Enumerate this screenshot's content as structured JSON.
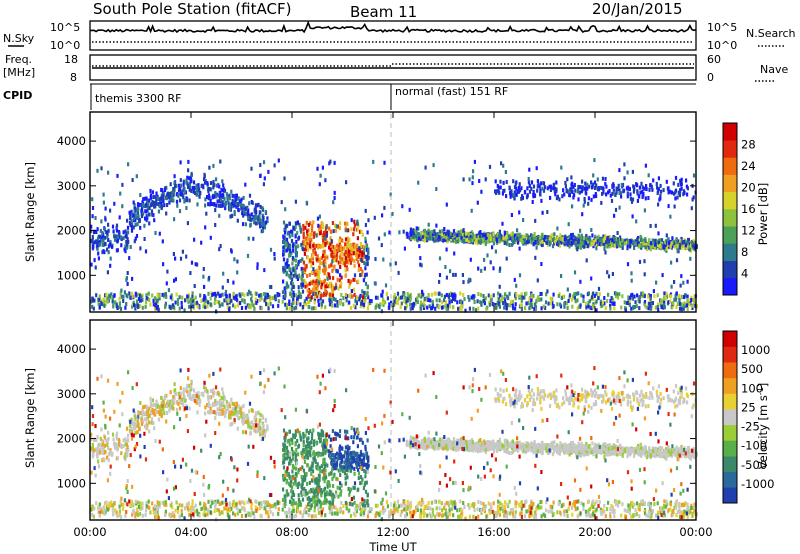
{
  "header": {
    "title": "South Pole Station (fitACF)",
    "beam": "Beam 11",
    "date": "20/Jan/2015"
  },
  "top_panels": {
    "nsky_label": "N.Sky",
    "nsky_ticks": [
      "10^5",
      "10^0"
    ],
    "nsearch_label": "N.Search",
    "nsearch_ticks": [
      "10^5",
      "10^0"
    ],
    "freq_label_1": "Freq.",
    "freq_label_2": "[MHz]",
    "freq_ticks": [
      "18",
      "8"
    ],
    "nave_label": "Nave",
    "nave_ticks": [
      "60",
      "0"
    ],
    "cpid_label": "CPID",
    "cpid_1": "themis 3300 RF",
    "cpid_2": "normal (fast) 151 RF"
  },
  "chart_data": [
    {
      "type": "heatmap",
      "name": "power",
      "ylabel": "Slant Range [km]",
      "yticks": [
        "1000",
        "2000",
        "3000",
        "4000"
      ],
      "ylim": [
        180,
        4650
      ],
      "colorbar_label": "Power [dB]",
      "colorbar_ticks": [
        "4",
        "8",
        "12",
        "16",
        "20",
        "24",
        "28"
      ],
      "colorbar_colors": [
        "#1a1aff",
        "#1f3fb0",
        "#2d7a8a",
        "#4da05a",
        "#8cc23c",
        "#d7d22a",
        "#f0a020",
        "#f06a10",
        "#e02a10",
        "#d00000"
      ],
      "features": [
        {
          "name": "ground scatter band (near range)",
          "t": [
            0,
            24
          ],
          "range_km": [
            250,
            700
          ]
        },
        {
          "name": "night echoes",
          "t": [
            0,
            7
          ],
          "range_km": [
            1500,
            3200
          ]
        },
        {
          "name": "strong echo region",
          "t": [
            8,
            11
          ],
          "range_km": [
            400,
            2200
          ]
        },
        {
          "name": "main scatter band",
          "t": [
            12.5,
            24
          ],
          "range_km": [
            1500,
            2200
          ]
        },
        {
          "name": "far-range scatter",
          "t": [
            16,
            24
          ],
          "range_km": [
            2700,
            3500
          ]
        }
      ]
    },
    {
      "type": "heatmap",
      "name": "velocity",
      "ylabel": "Slant Range [km]",
      "yticks": [
        "1000",
        "2000",
        "3000",
        "4000"
      ],
      "ylim": [
        180,
        4650
      ],
      "xlabel": "Time UT",
      "xticks": [
        "00:00",
        "04:00",
        "08:00",
        "12:00",
        "16:00",
        "20:00",
        "00:00"
      ],
      "xlim": [
        0,
        24
      ],
      "colorbar_label": "Velocity [m s^-1]",
      "colorbar_ticks": [
        "1000",
        "500",
        "100",
        "25",
        "-25",
        "-100",
        "-500",
        "-1000"
      ],
      "colorbar_colors": [
        "#2040b0",
        "#2a6a9a",
        "#3a8a6a",
        "#58b048",
        "#9acd38",
        "#c8c8c8",
        "#e8d030",
        "#f0a020",
        "#f06a10",
        "#e02a10",
        "#d00000"
      ]
    }
  ]
}
